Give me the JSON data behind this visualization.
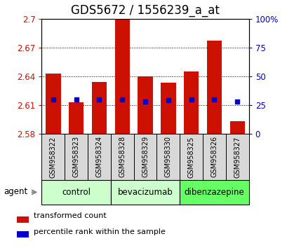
{
  "title": "GDS5672 / 1556239_a_at",
  "samples": [
    "GSM958322",
    "GSM958323",
    "GSM958324",
    "GSM958328",
    "GSM958329",
    "GSM958330",
    "GSM958325",
    "GSM958326",
    "GSM958327"
  ],
  "red_values": [
    2.643,
    2.613,
    2.634,
    2.7,
    2.64,
    2.633,
    2.645,
    2.677,
    2.593
  ],
  "blue_percentiles": [
    30,
    30,
    30,
    30,
    28,
    29,
    30,
    30,
    28
  ],
  "baseline": 2.58,
  "ylim_left": [
    2.58,
    2.7
  ],
  "ylim_right": [
    0,
    100
  ],
  "yticks_left": [
    2.58,
    2.61,
    2.64,
    2.67,
    2.7
  ],
  "yticks_right": [
    0,
    25,
    50,
    75,
    100
  ],
  "ytick_labels_left": [
    "2.58",
    "2.61",
    "2.64",
    "2.67",
    "2.7"
  ],
  "ytick_labels_right": [
    "0",
    "25",
    "50",
    "75",
    "100%"
  ],
  "groups": [
    {
      "label": "control",
      "indices": [
        0,
        1,
        2
      ],
      "color": "#ccffcc"
    },
    {
      "label": "bevacizumab",
      "indices": [
        3,
        4,
        5
      ],
      "color": "#ccffcc"
    },
    {
      "label": "dibenzazepine",
      "indices": [
        6,
        7,
        8
      ],
      "color": "#66ff66"
    }
  ],
  "bar_color": "#cc1100",
  "blue_color": "#0000cc",
  "bar_width": 0.65,
  "background_color": "#ffffff",
  "title_fontsize": 12,
  "tick_fontsize": 8.5,
  "sample_box_color": "#d8d8d8",
  "agent_arrow_color": "#888888"
}
